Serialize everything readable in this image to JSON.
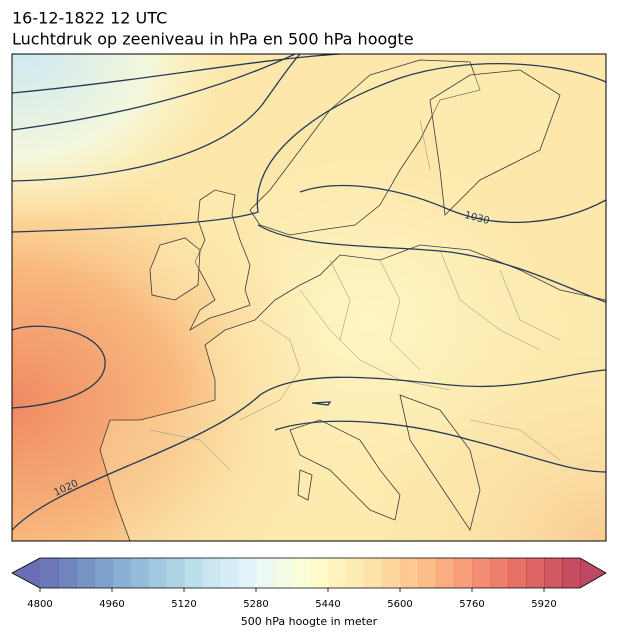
{
  "header": {
    "date": "16-12-1822 12 UTC",
    "title": "Luchtdruk op zeeniveau in hPa en 500 hPa hoogte"
  },
  "map": {
    "contour_labels": [
      "1030",
      "1020"
    ]
  },
  "colorbar": {
    "label": "500 hPa hoogte in meter",
    "lim": [
      4800,
      6000
    ],
    "ticks": [
      4800,
      4960,
      5120,
      5280,
      5440,
      5600,
      5760,
      5920
    ],
    "colors": [
      "#313695",
      "#4575b4",
      "#74add1",
      "#abd9e9",
      "#e0f3f8",
      "#ffffbf",
      "#fee090",
      "#fdae61",
      "#f46d43",
      "#d73027",
      "#a50026"
    ]
  }
}
